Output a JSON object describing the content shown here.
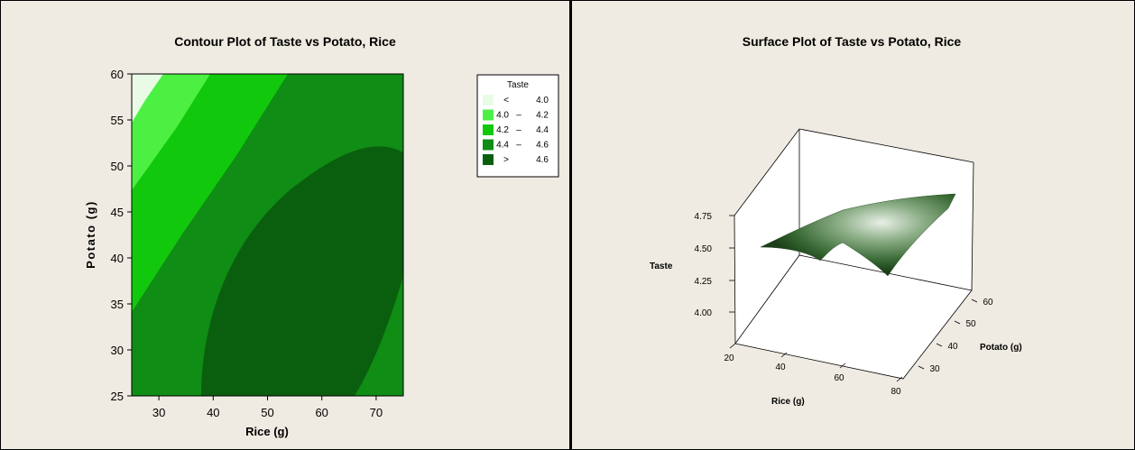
{
  "chart_data": [
    {
      "type": "contour",
      "title": "Contour Plot of Taste vs Potato, Rice",
      "xlabel": "Rice (g)",
      "ylabel": "Potato (g)",
      "xlim": [
        25,
        75
      ],
      "ylim": [
        25,
        60
      ],
      "xticks": [
        "30",
        "40",
        "50",
        "60",
        "70"
      ],
      "yticks": [
        "25",
        "30",
        "35",
        "40",
        "45",
        "50",
        "55",
        "60"
      ],
      "legend": {
        "title": "Taste",
        "position": "top-right",
        "entries": [
          {
            "label": "< 4.0",
            "lo": "<",
            "hi": "4.0",
            "color": "#e9fbe6"
          },
          {
            "label": "4.0 – 4.2",
            "lo": "4.0",
            "hi": "4.2",
            "color": "#4cf043"
          },
          {
            "label": "4.2 – 4.4",
            "lo": "4.2",
            "hi": "4.4",
            "color": "#12c80d"
          },
          {
            "label": "4.4 – 4.6",
            "lo": "4.4",
            "hi": "4.6",
            "color": "#0f8d14"
          },
          {
            "label": "> 4.6",
            "lo": ">",
            "hi": "4.6",
            "color": "#0a5f0e"
          }
        ]
      }
    },
    {
      "type": "surface",
      "title": "Surface Plot of Taste vs Potato, Rice",
      "xlabel": "Rice (g)",
      "ylabel": "Potato (g)",
      "zlabel": "Taste",
      "xticks": [
        "20",
        "40",
        "60",
        "80"
      ],
      "yticks": [
        "30",
        "40",
        "50",
        "60"
      ],
      "zticks": [
        "4.00",
        "4.25",
        "4.50",
        "4.75"
      ],
      "surface_color": "#2f6a2c"
    }
  ]
}
